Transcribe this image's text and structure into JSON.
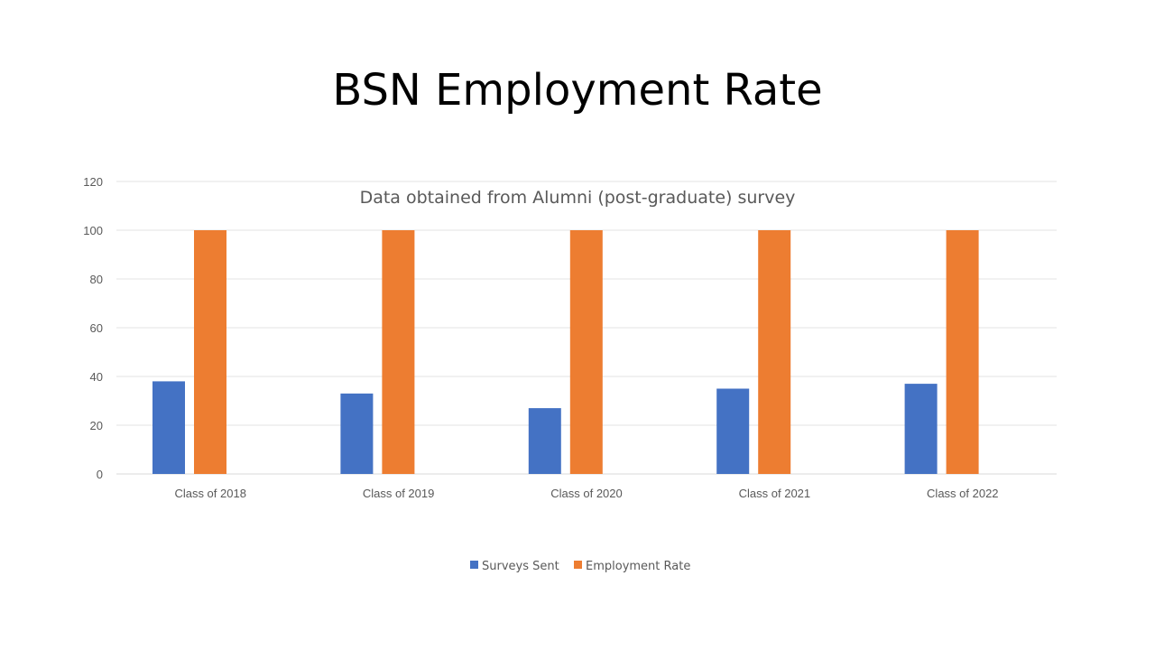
{
  "slide": {
    "title": "BSN Employment Rate"
  },
  "chart_data": {
    "type": "bar",
    "title": "Data obtained from Alumni (post-graduate) survey",
    "xlabel": "",
    "ylabel": "",
    "categories": [
      "Class of 2018",
      "Class of 2019",
      "Class of 2020",
      "Class of 2021",
      "Class of 2022"
    ],
    "series": [
      {
        "name": "Surveys Sent",
        "values": [
          38,
          33,
          27,
          35,
          37
        ],
        "color": "#4472C4"
      },
      {
        "name": "Employment Rate",
        "values": [
          100,
          100,
          100,
          100,
          100
        ],
        "color": "#ED7D31"
      }
    ],
    "ylim": [
      0,
      120
    ],
    "yticks": [
      0,
      20,
      40,
      60,
      80,
      100,
      120
    ],
    "grid": true,
    "legend": "bottom"
  }
}
